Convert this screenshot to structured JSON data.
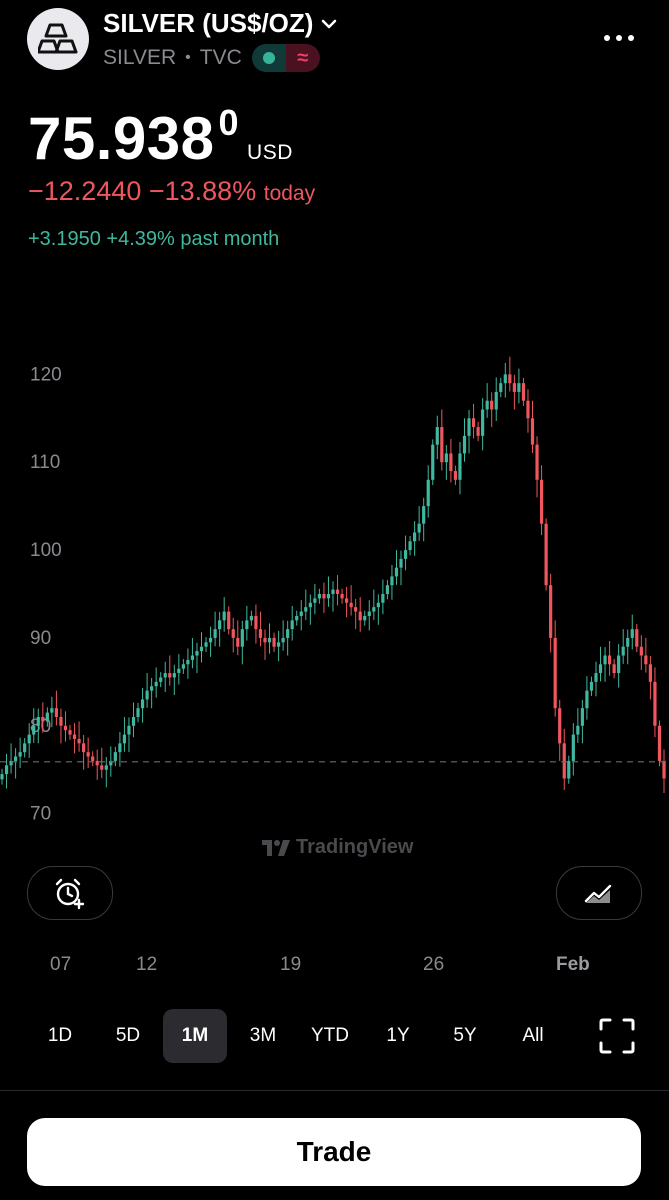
{
  "header": {
    "title": "SILVER (US$/OZ)",
    "symbol": "SILVER",
    "exchange": "TVC",
    "status_icons": [
      "market-open-dot-icon",
      "delayed-data-icon"
    ]
  },
  "quote": {
    "price_main": "75.938",
    "price_super": "0",
    "currency": "USD",
    "change_today": "−12.2440 −13.88%",
    "change_today_suffix": "today",
    "change_month": "+3.1950 +4.39% past month",
    "colors": {
      "down": "#f0565e",
      "up": "#3fb89f"
    }
  },
  "watermark": "TradingView",
  "chart_data": {
    "type": "candlestick",
    "ylim": [
      67,
      123
    ],
    "yticks": [
      70,
      80,
      90,
      100,
      110,
      120
    ],
    "xticks": [
      "07",
      "12",
      "19",
      "26",
      "Feb"
    ],
    "last_price_line": 75.9,
    "up_color": "#3fb89f",
    "down_color": "#f0565e",
    "close_path": [
      74.5,
      75.5,
      76,
      76.5,
      77,
      78,
      79,
      80,
      81,
      80.5,
      81.5,
      82,
      81,
      80,
      79.5,
      79,
      78.5,
      78,
      77,
      76.5,
      76,
      75.5,
      75,
      75.5,
      76,
      77,
      78,
      79,
      80,
      81,
      82,
      83,
      84,
      84.5,
      85,
      85.5,
      86,
      85.5,
      86,
      86.5,
      87,
      87.5,
      88,
      88.5,
      89,
      89.5,
      90,
      91,
      92,
      93,
      91,
      90,
      89,
      91,
      92,
      92.5,
      91,
      90,
      89.5,
      90,
      89,
      89.5,
      90,
      91,
      92,
      92.5,
      93,
      93.5,
      94,
      94.5,
      95,
      94.5,
      95,
      95.5,
      95,
      94.5,
      94,
      93.5,
      93,
      92,
      92.5,
      93,
      93.5,
      94,
      95,
      96,
      97,
      98,
      99,
      100,
      101,
      102,
      103,
      105,
      108,
      112,
      114,
      110,
      111,
      109,
      108,
      111,
      113,
      115,
      114,
      113,
      116,
      117,
      116,
      118,
      119,
      120,
      119,
      118,
      119,
      117,
      115,
      112,
      108,
      103,
      96,
      90,
      82,
      78,
      74,
      76,
      79,
      80,
      82,
      84,
      85,
      86,
      87,
      88,
      87,
      86,
      88,
      89,
      90,
      91,
      89,
      88,
      87,
      85,
      80,
      76,
      74
    ],
    "ohlc_sample_note": ""
  },
  "ranges": {
    "items": [
      "1D",
      "5D",
      "1M",
      "3M",
      "YTD",
      "1Y",
      "5Y",
      "All"
    ],
    "active": "1M"
  },
  "actions": {
    "trade": "Trade"
  }
}
